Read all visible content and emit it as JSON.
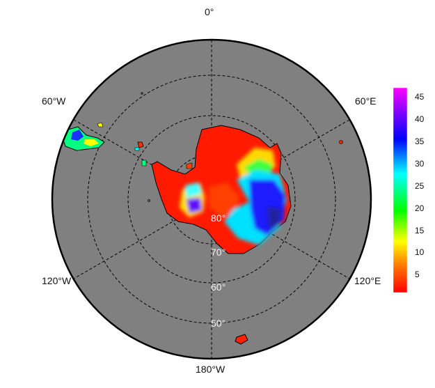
{
  "map": {
    "longitude_labels": [
      "0°",
      "60°E",
      "120°E",
      "180°W",
      "120°W",
      "60°W"
    ],
    "latitude_labels": [
      "80°",
      "70°",
      "60°",
      "50°"
    ],
    "ocean_color": "#808080",
    "land_outline_color": "#000000",
    "grid_style": "dashed"
  },
  "colorbar": {
    "ticks": [
      "45",
      "40",
      "35",
      "30",
      "25",
      "20",
      "15",
      "10",
      "5"
    ],
    "tick_values": [
      45,
      40,
      35,
      30,
      25,
      20,
      15,
      10,
      5
    ],
    "range": [
      1,
      47
    ],
    "colormap": [
      "#ff0000",
      "#ff8000",
      "#ffff00",
      "#00ff00",
      "#00ffff",
      "#0000ff",
      "#8000ff",
      "#ff00ff"
    ]
  }
}
